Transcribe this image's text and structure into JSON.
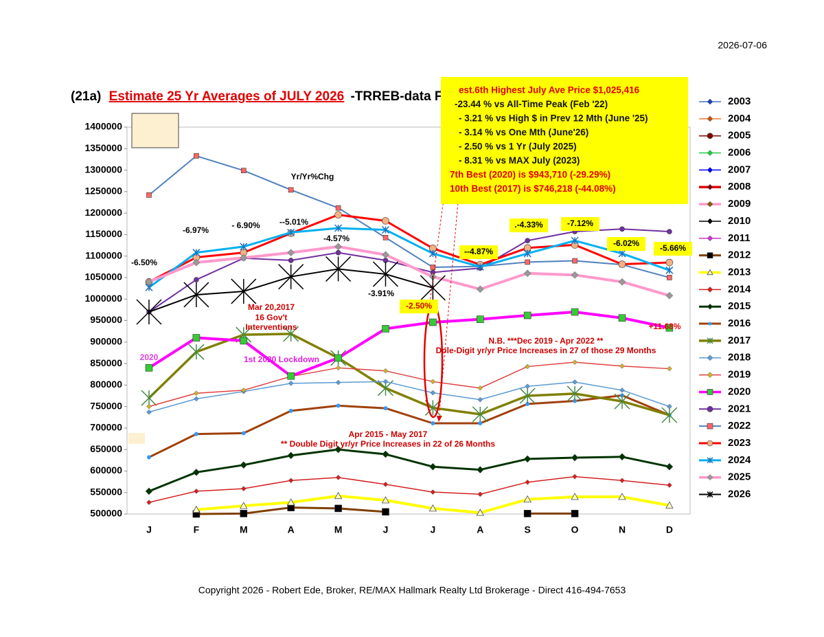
{
  "chart_data": {
    "type": "line",
    "date": "2026-07-06",
    "title_prefix": "(21a)",
    "title": "Estimate 25 Yr Averages of JULY 2026",
    "title_suffix": "-TRREB-data F",
    "footer": "Copyright 2026 - Robert Ede, Broker, RE/MAX Hallmark Realty Ltd Brokerage - Direct  416-494-7653",
    "categories": [
      "J",
      "F",
      "M",
      "A",
      "M",
      "J",
      "J",
      "A",
      "S",
      "O",
      "N",
      "D"
    ],
    "ylim": [
      500000,
      1400000
    ],
    "yticks": [
      500000,
      550000,
      600000,
      650000,
      700000,
      750000,
      800000,
      850000,
      900000,
      950000,
      1000000,
      1050000,
      1100000,
      1150000,
      1200000,
      1250000,
      1300000,
      1350000,
      1400000
    ],
    "grid": false,
    "info_box": [
      "est.6th Highest July Ave Price  $1,025,416",
      "-23.44 % vs All-Time Peak (Feb '22)",
      "- 3.21 % vs High $ in Prev 12 Mth (June '25)",
      "- 3.14 % vs One Mth (June'26)",
      "- 2.50 % vs 1 Yr (July 2025)",
      "- 8.31 % vs MAX July (2023)",
      "7th Best (2020) is $943,710 (-29.29%)",
      "10th Best (2017) is $746,218 (-44.08%)"
    ],
    "annotations": [
      {
        "text": "Yr/Yr%Chg",
        "color": "#000000"
      },
      {
        "text": "-6.50%",
        "color": "#000000"
      },
      {
        "text": "-6.97%",
        "color": "#000000"
      },
      {
        "text": "- 6.90%",
        "color": "#000000"
      },
      {
        "text": "--5.01%",
        "color": "#000000"
      },
      {
        "text": "-4.57%",
        "color": "#000000"
      },
      {
        "text": "-3.91%",
        "color": "#000000"
      },
      {
        "text": "-2.50%",
        "color": "#cc0000",
        "highlight": true
      },
      {
        "text": "--4.87%",
        "color": "#000000",
        "highlight": true
      },
      {
        "text": ".-4.33%",
        "color": "#000000",
        "highlight": true
      },
      {
        "text": "-7.12%",
        "color": "#000000",
        "highlight": true
      },
      {
        "text": "-6.02%",
        "color": "#000000",
        "highlight": true
      },
      {
        "text": "-5.66%",
        "color": "#000000",
        "highlight": true
      },
      {
        "text": "+11.68%",
        "color": "#e00000"
      },
      {
        "text": "Mar 20,2017",
        "color": "#cc0000"
      },
      {
        "text": "16 Gov't",
        "color": "#cc0000"
      },
      {
        "text": "Interventions",
        "color": "#cc0000"
      },
      {
        "text": "2020",
        "color": "#e040e0"
      },
      {
        "text": "1st 2020 Lockdown",
        "color": "#e020e0"
      },
      {
        "text": "N.B.  ***Dec 2019 - Apr 2022 **",
        "color": "#cc0000"
      },
      {
        "text": "Dole-Digit yr/yr Price Increases in 27 of those 29 Months",
        "color": "#cc0000"
      },
      {
        "text": "Apr 2015 - May 2017",
        "color": "#cc0000"
      },
      {
        "text": "** Double Digit yr/yr Price Increases in 22 of 26 Months",
        "color": "#cc0000"
      }
    ],
    "series": [
      {
        "name": "2003",
        "color": "#4472c4",
        "width": 1.5,
        "marker": "diamond",
        "marker_color": "#1f3fbf",
        "values": [
          null,
          null,
          null,
          null,
          null,
          null,
          null,
          null,
          null,
          null,
          null,
          null
        ]
      },
      {
        "name": "2004",
        "color": "#ed7d31",
        "width": 1.5,
        "marker": "diamond",
        "marker_color": "#c05010",
        "values": [
          null,
          null,
          null,
          null,
          null,
          null,
          null,
          null,
          null,
          null,
          null,
          null
        ]
      },
      {
        "name": "2005",
        "color": "#800000",
        "width": 1.5,
        "marker": "circle",
        "marker_color": "#800000",
        "values": [
          null,
          null,
          null,
          null,
          null,
          null,
          null,
          null,
          null,
          null,
          null,
          null
        ]
      },
      {
        "name": "2006",
        "color": "#22cc44",
        "width": 1.5,
        "marker": "diamond",
        "marker_color": "#22cc44",
        "values": [
          null,
          null,
          null,
          null,
          null,
          null,
          null,
          null,
          null,
          null,
          null,
          null
        ]
      },
      {
        "name": "2007",
        "color": "#0000ff",
        "width": 1.5,
        "marker": "diamond",
        "marker_color": "#0000ff",
        "values": [
          null,
          null,
          null,
          null,
          null,
          null,
          null,
          null,
          null,
          null,
          null,
          null
        ]
      },
      {
        "name": "2008",
        "color": "#e00000",
        "width": 4,
        "marker": "diamond",
        "marker_color": "#800000",
        "values": [
          null,
          null,
          null,
          null,
          null,
          null,
          null,
          null,
          null,
          null,
          null,
          null
        ]
      },
      {
        "name": "2009",
        "color": "#ff99cc",
        "width": 4,
        "marker": "diamond",
        "marker_color": "#806000",
        "values": [
          null,
          null,
          null,
          null,
          null,
          null,
          null,
          null,
          null,
          null,
          null,
          null
        ]
      },
      {
        "name": "2010",
        "color": "#000000",
        "width": 1.5,
        "marker": "diamond",
        "marker_color": "#000000",
        "values": [
          null,
          null,
          null,
          null,
          null,
          null,
          null,
          null,
          null,
          null,
          null,
          null
        ]
      },
      {
        "name": "2011",
        "color": "#cc33cc",
        "width": 1.5,
        "marker": "diamond",
        "marker_color": "#cc33cc",
        "values": [
          null,
          null,
          null,
          null,
          null,
          null,
          null,
          null,
          null,
          null,
          null,
          null
        ]
      },
      {
        "name": "2012",
        "color": "#7f3f00",
        "width": 3,
        "marker": "square",
        "marker_color": "#000000",
        "values": [
          null,
          500000,
          501000,
          515000,
          513000,
          505000,
          null,
          null,
          501000,
          501000,
          null,
          null
        ]
      },
      {
        "name": "2013",
        "color": "#ffff00",
        "width": 4,
        "marker": "triangle",
        "marker_color": "#ffffcc",
        "values": [
          null,
          510000,
          519000,
          527000,
          542000,
          532000,
          513000,
          503000,
          534000,
          540000,
          540000,
          520000
        ]
      },
      {
        "name": "2014",
        "color": "#d42020",
        "width": 1.5,
        "marker": "diamond",
        "marker_color": "#d42020",
        "values": [
          527000,
          553000,
          559000,
          578000,
          585000,
          569000,
          551000,
          546000,
          574000,
          587000,
          578000,
          567000
        ]
      },
      {
        "name": "2015",
        "color": "#003300",
        "width": 3,
        "marker": "diamond",
        "marker_color": "#003300",
        "values": [
          553000,
          597000,
          614000,
          636000,
          650000,
          639000,
          610000,
          603000,
          628000,
          631000,
          633000,
          610000
        ]
      },
      {
        "name": "2016",
        "color": "#a0400a",
        "width": 3,
        "marker": "dot",
        "marker_color": "#3399ff",
        "values": [
          632000,
          686000,
          688000,
          740000,
          752000,
          746000,
          711000,
          711000,
          756000,
          763000,
          776000,
          730000
        ]
      },
      {
        "name": "2017",
        "color": "#808000",
        "width": 3.5,
        "marker": "cross",
        "marker_color": "#448844",
        "values": [
          770000,
          877000,
          917000,
          919000,
          863000,
          793000,
          747000,
          732000,
          775000,
          780000,
          762000,
          730000
        ]
      },
      {
        "name": "2018",
        "color": "#5b9bd5",
        "width": 1.5,
        "marker": "diamond",
        "marker_color": "#5b9bd5",
        "values": [
          737000,
          768000,
          785000,
          804000,
          806000,
          808000,
          782000,
          766000,
          797000,
          807000,
          788000,
          750000
        ]
      },
      {
        "name": "2019",
        "color": "#e04040",
        "width": 1.5,
        "marker": "diamond",
        "marker_color": "#d0b030",
        "values": [
          750000,
          781000,
          788000,
          820000,
          840000,
          833000,
          808000,
          793000,
          843000,
          853000,
          844000,
          838000
        ]
      },
      {
        "name": "2020",
        "color": "#ff00ff",
        "width": 4,
        "marker": "square",
        "marker_color": "#33cc33",
        "values": [
          840000,
          910000,
          903000,
          821000,
          863000,
          931000,
          946000,
          953000,
          962000,
          970000,
          956000,
          933000
        ]
      },
      {
        "name": "2021",
        "color": "#7030a0",
        "width": 2,
        "marker": "circle",
        "marker_color": "#7030a0",
        "values": [
          970000,
          1045000,
          1095000,
          1090000,
          1108000,
          1090000,
          1062000,
          1072000,
          1136000,
          1157000,
          1163000,
          1157000
        ]
      },
      {
        "name": "2022",
        "color": "#4f81bd",
        "width": 2,
        "marker": "square",
        "marker_color": "#ff6666",
        "values": [
          1242000,
          1333000,
          1299000,
          1254000,
          1212000,
          1143000,
          1074000,
          1076000,
          1086000,
          1089000,
          1080000,
          1050000
        ]
      },
      {
        "name": "2023",
        "color": "#ff0000",
        "width": 3,
        "marker": "circle",
        "marker_color": "#f4b183",
        "values": [
          1040000,
          1097000,
          1108000,
          1153000,
          1196000,
          1182000,
          1118000,
          1080000,
          1119000,
          1126000,
          1081000,
          1085000
        ]
      },
      {
        "name": "2024",
        "color": "#00b0f0",
        "width": 3,
        "marker": "star",
        "marker_color": "#1f6fbf",
        "values": [
          1027000,
          1108000,
          1122000,
          1155000,
          1165000,
          1161000,
          1106000,
          1075000,
          1106000,
          1136000,
          1106000,
          1067000
        ]
      },
      {
        "name": "2025",
        "color": "#ff99cc",
        "width": 4,
        "marker": "diamond",
        "marker_color": "#999999",
        "values": [
          1040000,
          1085000,
          1096000,
          1108000,
          1122000,
          1103000,
          1052000,
          1023000,
          1060000,
          1056000,
          1040000,
          1008000
        ]
      },
      {
        "name": "2026",
        "color": "#000000",
        "width": 2,
        "marker": "star",
        "marker_color": "#000000",
        "values": [
          970000,
          1010000,
          1018000,
          1052000,
          1070000,
          1058000,
          1026000,
          null,
          null,
          null,
          null,
          null
        ]
      }
    ]
  }
}
